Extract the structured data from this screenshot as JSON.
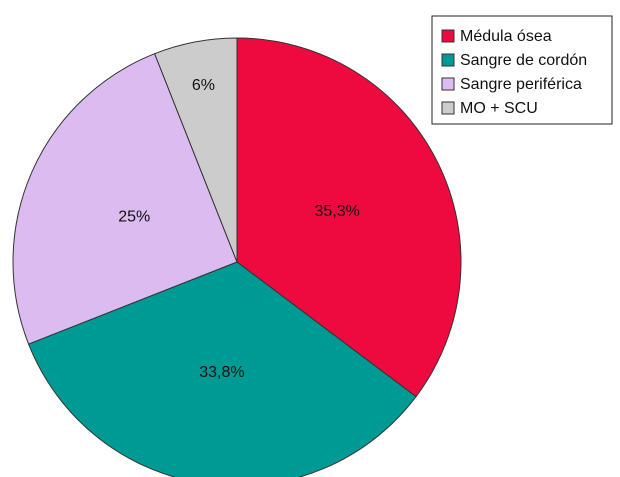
{
  "chart_data": {
    "type": "pie",
    "categories": [
      "Médula ósea",
      "Sangre de cordón",
      "Sangre periférica",
      "MO + SCU"
    ],
    "values": [
      35.3,
      33.8,
      25,
      6
    ],
    "value_labels": [
      "35,3%",
      "33,8%",
      "25%",
      "6%"
    ],
    "colors": [
      "#ee0a3e",
      "#009a94",
      "#dcbbf0",
      "#cccccc"
    ],
    "legend": "upper right"
  }
}
